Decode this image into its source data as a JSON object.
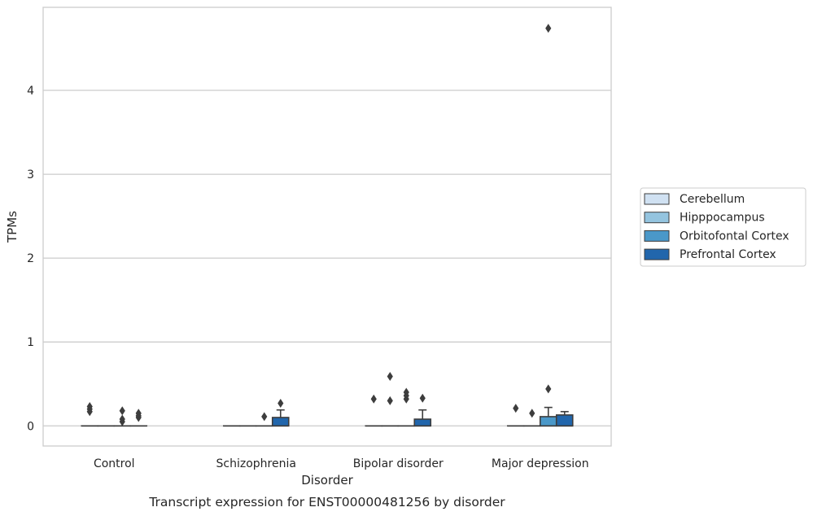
{
  "chart_data": {
    "type": "box",
    "title": "",
    "caption": "Transcript expression for ENST00000481256 by disorder",
    "xlabel": "Disorder",
    "ylabel": "TPMs",
    "ylim": [
      -0.24,
      4.99
    ],
    "yticks": [
      0,
      1,
      2,
      3,
      4
    ],
    "grid": "horizontal",
    "legend_position": "outside-right",
    "categories": [
      "Control",
      "Schizophrenia",
      "Bipolar disorder",
      "Major depression"
    ],
    "series": [
      {
        "name": "Cerebellum",
        "color": "#d0e1f2",
        "boxes": [
          {
            "q1": 0,
            "median": 0,
            "q3": 0,
            "whisker_low": 0,
            "whisker_high": 0,
            "outliers": [
              0.17,
              0.2,
              0.23
            ]
          },
          {
            "q1": 0,
            "median": 0,
            "q3": 0,
            "whisker_low": 0,
            "whisker_high": 0,
            "outliers": []
          },
          {
            "q1": 0,
            "median": 0,
            "q3": 0,
            "whisker_low": 0,
            "whisker_high": 0,
            "outliers": [
              0.32
            ]
          },
          {
            "q1": 0,
            "median": 0,
            "q3": 0,
            "whisker_low": 0,
            "whisker_high": 0,
            "outliers": [
              0.21
            ]
          }
        ]
      },
      {
        "name": "Hipppocampus",
        "color": "#94c4df",
        "boxes": [
          {
            "q1": 0,
            "median": 0,
            "q3": 0,
            "whisker_low": 0,
            "whisker_high": 0,
            "outliers": []
          },
          {
            "q1": 0,
            "median": 0,
            "q3": 0,
            "whisker_low": 0,
            "whisker_high": 0,
            "outliers": []
          },
          {
            "q1": 0,
            "median": 0,
            "q3": 0,
            "whisker_low": 0,
            "whisker_high": 0,
            "outliers": [
              0.3,
              0.59
            ]
          },
          {
            "q1": 0,
            "median": 0,
            "q3": 0,
            "whisker_low": 0,
            "whisker_high": 0,
            "outliers": [
              0.15
            ]
          }
        ]
      },
      {
        "name": "Orbitofontal Cortex",
        "color": "#4a98c9",
        "boxes": [
          {
            "q1": 0,
            "median": 0,
            "q3": 0,
            "whisker_low": 0,
            "whisker_high": 0,
            "outliers": [
              0.05,
              0.08,
              0.18
            ]
          },
          {
            "q1": 0,
            "median": 0,
            "q3": 0,
            "whisker_low": 0,
            "whisker_high": 0,
            "outliers": [
              0.11
            ]
          },
          {
            "q1": 0,
            "median": 0,
            "q3": 0,
            "whisker_low": 0,
            "whisker_high": 0,
            "outliers": [
              0.32,
              0.36,
              0.4
            ]
          },
          {
            "q1": 0,
            "median": 0,
            "q3": 0.11,
            "whisker_low": 0,
            "whisker_high": 0.22,
            "outliers": [
              0.44,
              4.74
            ]
          }
        ]
      },
      {
        "name": "Prefrontal Cortex",
        "color": "#2166ac",
        "boxes": [
          {
            "q1": 0,
            "median": 0,
            "q3": 0,
            "whisker_low": 0,
            "whisker_high": 0,
            "outliers": [
              0.1,
              0.12,
              0.15
            ]
          },
          {
            "q1": 0,
            "median": 0,
            "q3": 0.1,
            "whisker_low": 0,
            "whisker_high": 0.19,
            "outliers": [
              0.27
            ]
          },
          {
            "q1": 0,
            "median": 0,
            "q3": 0.08,
            "whisker_low": 0,
            "whisker_high": 0.19,
            "outliers": [
              0.33
            ]
          },
          {
            "q1": 0,
            "median": 0,
            "q3": 0.13,
            "whisker_low": 0,
            "whisker_high": 0.17,
            "outliers": []
          }
        ]
      }
    ]
  }
}
